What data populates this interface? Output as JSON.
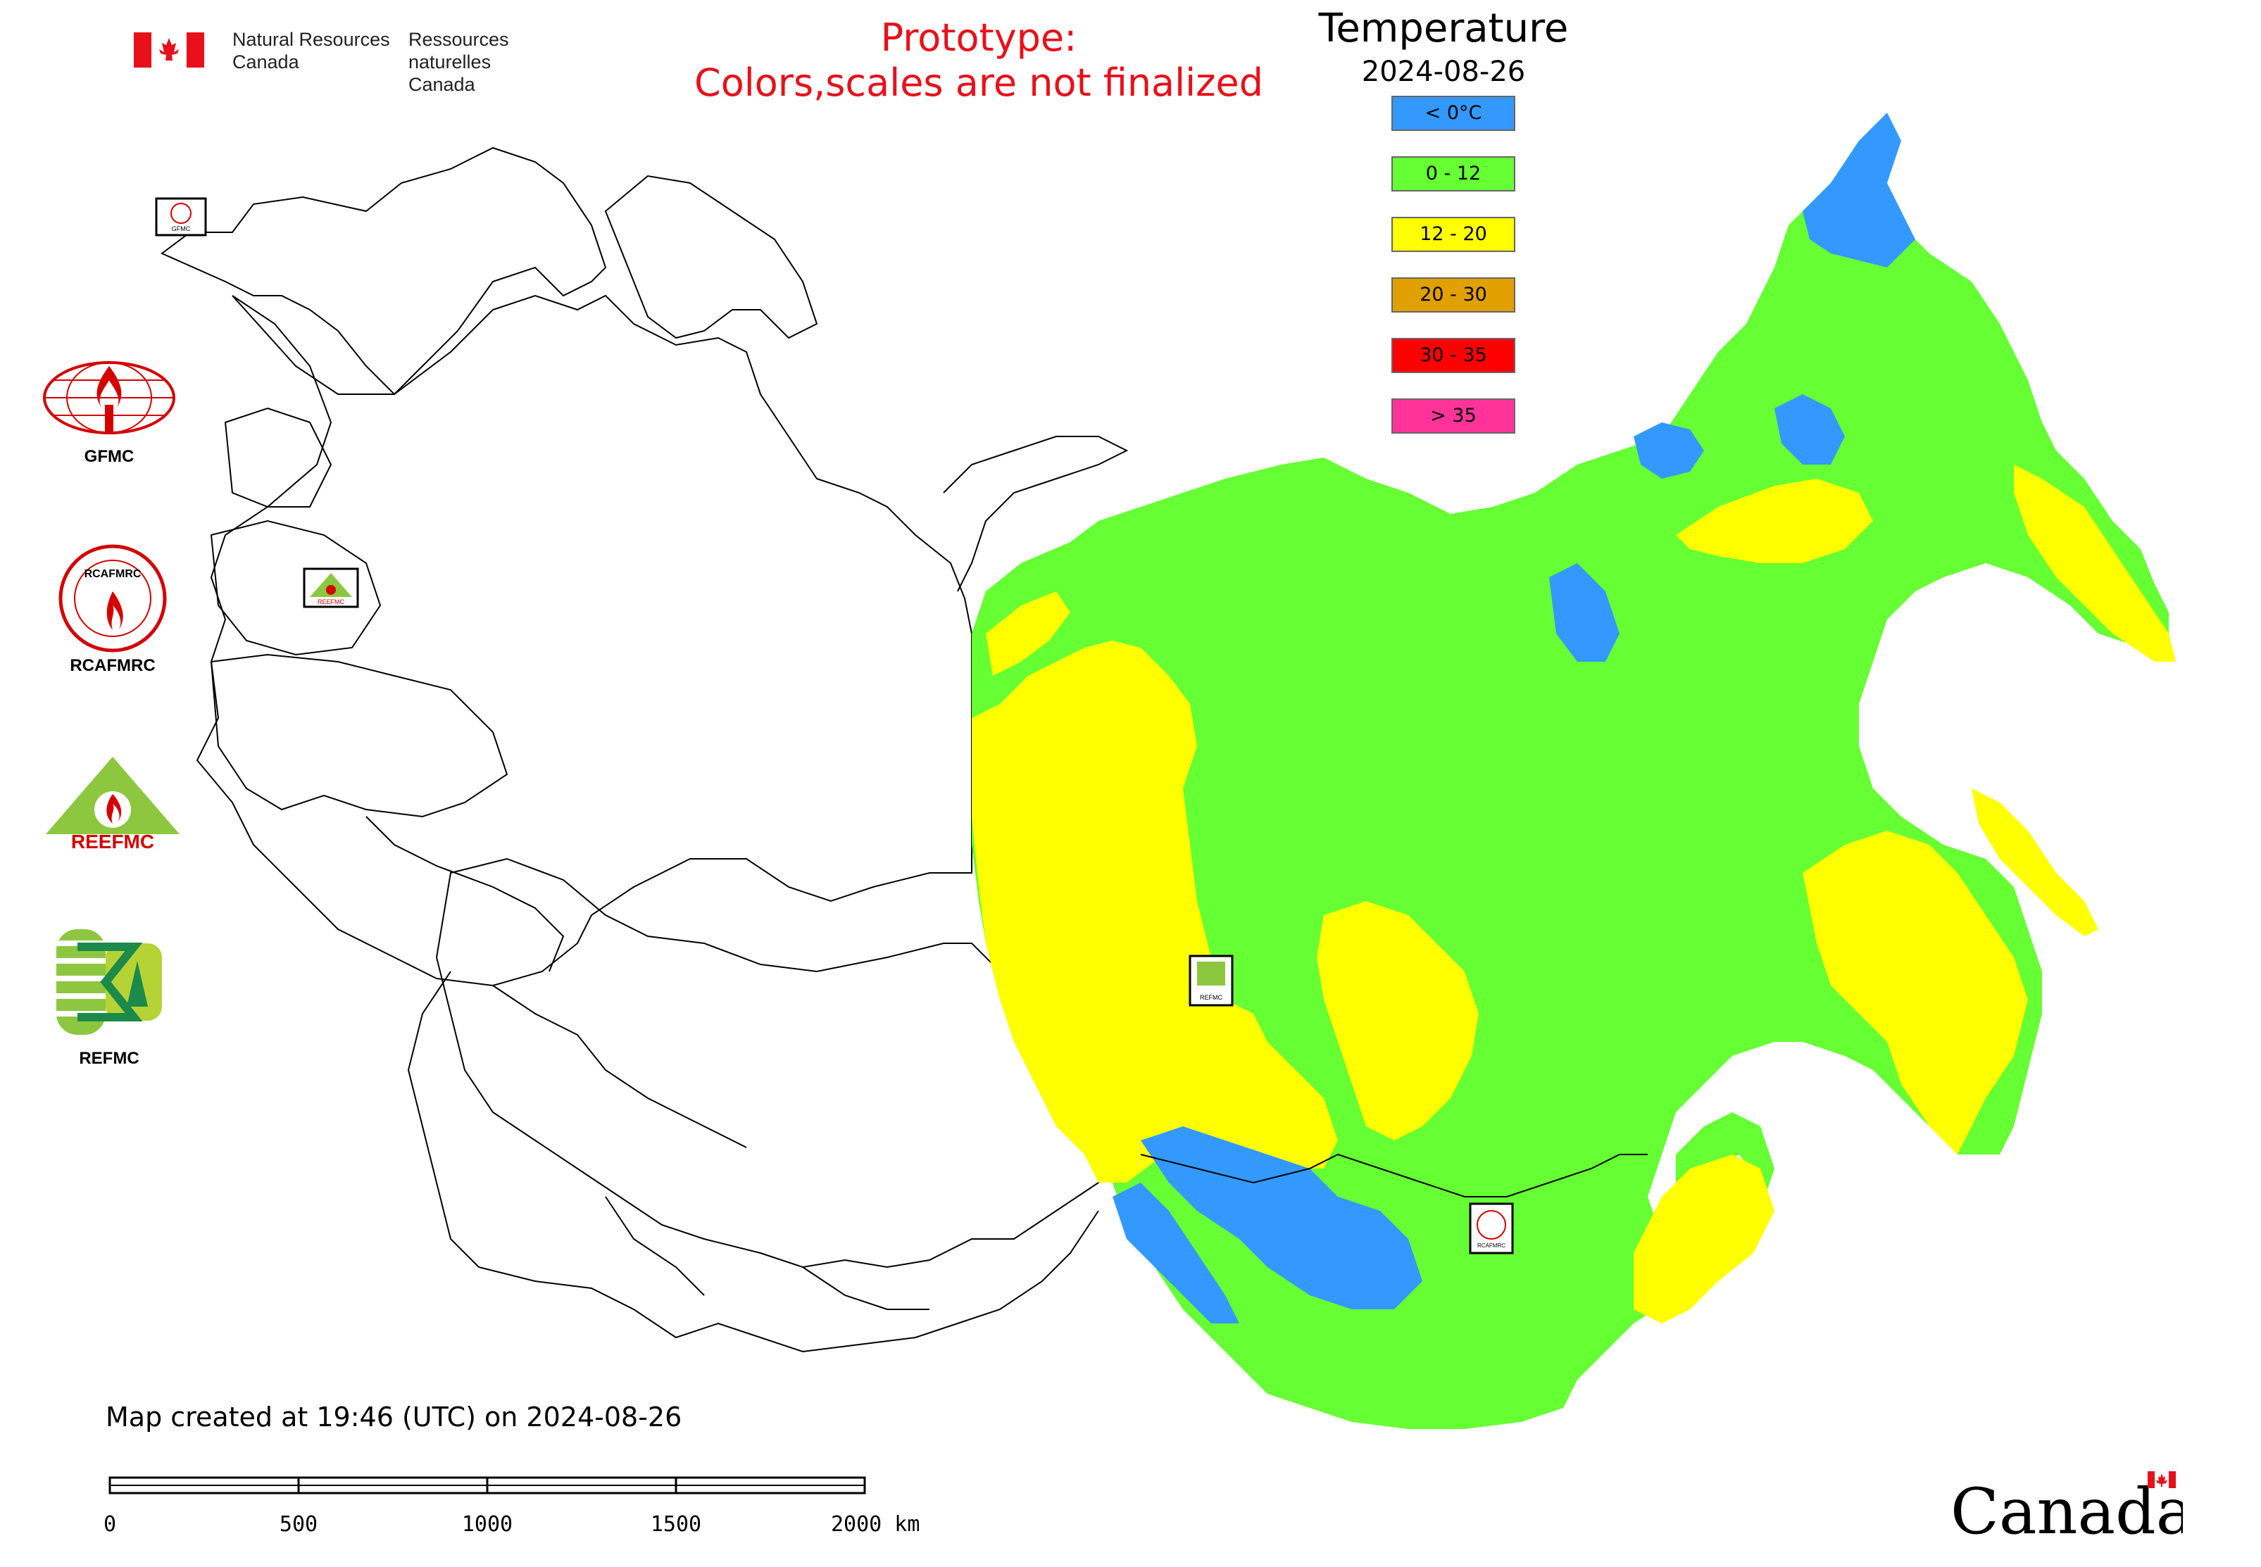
{
  "header": {
    "org_en_line1": "Natural Resources",
    "org_en_line2": "Canada",
    "org_fr_line1": "Ressources naturelles",
    "org_fr_line2": "Canada",
    "prototype_line1": "Prototype:",
    "prototype_line2": "Colors,scales are not finalized"
  },
  "legend": {
    "title": "Temperature",
    "date": "2024-08-26",
    "classes": [
      {
        "label": "< 0°C",
        "color": "#3399ff"
      },
      {
        "label": "0 - 12",
        "color": "#66ff33"
      },
      {
        "label": "12 - 20",
        "color": "#ffff00"
      },
      {
        "label": "20 - 30",
        "color": "#e0a000"
      },
      {
        "label": "30 - 35",
        "color": "#ff0000"
      },
      {
        "label": "> 35",
        "color": "#ff3399"
      }
    ]
  },
  "logos": {
    "gfmc": "GFMC",
    "rcafmrc": "RCAFMRC",
    "reefmc": "REEFMC",
    "refmc": "REFMC",
    "reefmc_text": "REEFMC",
    "rcafmrc_text": "RCAFMRC"
  },
  "footer": {
    "created": "Map created at 19:46 (UTC) on 2024-08-26",
    "scale_labels": [
      "0",
      "500",
      "1000",
      "1500",
      "2000 km"
    ],
    "wordmark": "Canada"
  },
  "colors": {
    "cold": "#3399ff",
    "cool": "#66ff33",
    "mild": "#ffff00",
    "outline": "#000000",
    "prototype": "#e8101a"
  }
}
